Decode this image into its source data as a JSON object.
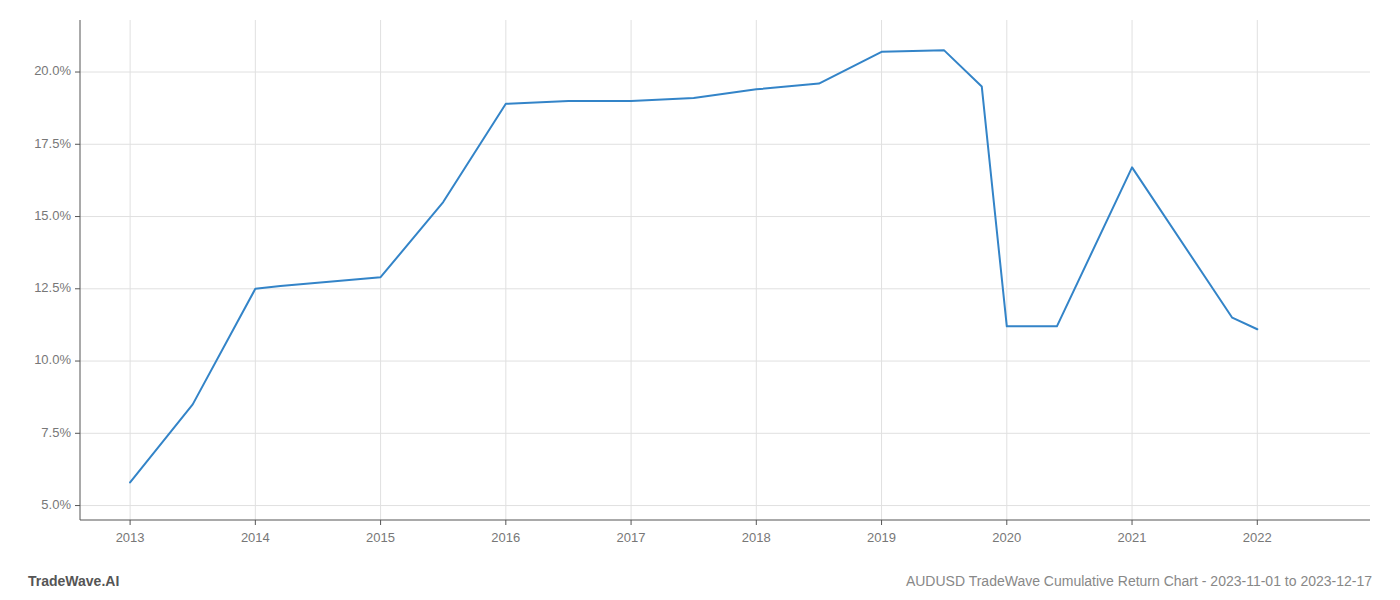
{
  "chart_data": {
    "type": "line",
    "title": "AUDUSD TradeWave Cumulative Return Chart - 2023-11-01 to 2023-12-17",
    "annotations": [
      "TradeWave.AI"
    ],
    "x": [
      2013,
      2013.5,
      2014,
      2014.2,
      2015,
      2015.5,
      2016,
      2016.5,
      2017,
      2017.5,
      2018,
      2018.5,
      2019,
      2019.5,
      2019.8,
      2020,
      2020.4,
      2021,
      2021.8,
      2022
    ],
    "values": [
      5.8,
      8.5,
      12.5,
      12.6,
      12.9,
      15.5,
      18.9,
      19.0,
      19.0,
      19.1,
      19.4,
      19.6,
      20.7,
      20.75,
      19.5,
      11.2,
      11.2,
      16.7,
      11.5,
      11.1
    ],
    "color": "#3384c8",
    "xlim": [
      2012.6,
      2022.9
    ],
    "ylim": [
      4.5,
      21.8
    ],
    "xticks": [
      2013,
      2014,
      2015,
      2016,
      2017,
      2018,
      2019,
      2020,
      2021,
      2022
    ],
    "yticks": [
      {
        "value": 5.0,
        "label": "5.0%"
      },
      {
        "value": 7.5,
        "label": "7.5%"
      },
      {
        "value": 10.0,
        "label": "10.0%"
      },
      {
        "value": 12.5,
        "label": "12.5%"
      },
      {
        "value": 15.0,
        "label": "15.0%"
      },
      {
        "value": 17.5,
        "label": "17.5%"
      },
      {
        "value": 20.0,
        "label": "20.0%"
      }
    ],
    "grid": true
  }
}
